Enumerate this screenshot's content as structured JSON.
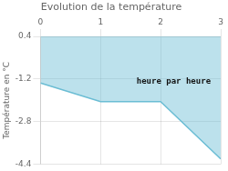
{
  "chart_data": {
    "type": "line",
    "title": "Evolution de la température",
    "y_label": "Température en °C",
    "x": [
      0,
      1,
      2,
      3
    ],
    "values": [
      -1.35,
      -2.05,
      -2.05,
      -4.2
    ],
    "color": "#6bbdd4",
    "xlim": [
      0,
      3
    ],
    "xticks": [
      0,
      1,
      2,
      3
    ],
    "ylim": [
      -4.4,
      0.4
    ],
    "yticks": [
      0.4,
      -1.2,
      -2.8,
      -4.4
    ],
    "grid": true,
    "annotations": [
      {
        "text": "heure par heure",
        "x": 1.6,
        "y": -1.3
      }
    ]
  }
}
